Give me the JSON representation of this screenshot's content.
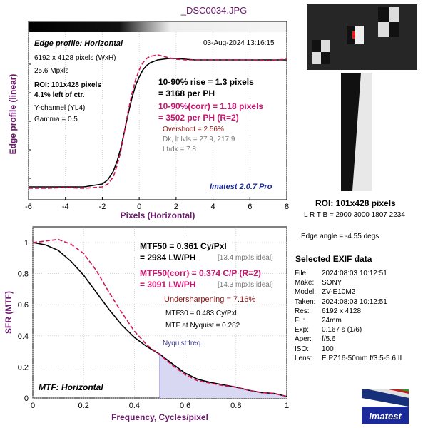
{
  "window_title": "_DSC0034.JPG",
  "colors": {
    "measured": "#000000",
    "corrected": "#d0145a",
    "title": "#6a1a6a",
    "axis_label": "#6a1a6a",
    "nyquist_fill": "#d8d8f2",
    "nyquist_line": "#7070d0",
    "brand_blue": "#1a2a9a"
  },
  "edge_panel": {
    "header": "Edge profile: Horizontal",
    "timestamp": "03-Aug-2024 13:16:15",
    "info_lines": [
      "6192 x 4128 pixels (WxH)",
      "25.6 Mpxls"
    ],
    "roi_lines": [
      "ROI: 101x428 pixels",
      "4.1% left of ctr."
    ],
    "channel": "Y-channel  (YL4)",
    "gamma": "Gamma = 0.5",
    "rise_1": "10-90% rise = 1.3 pixels",
    "rise_2": "= 3168 per PH",
    "corr_1": "10-90%(corr) = 1.18 pixels",
    "corr_2": "= 3502 per PH  (R=2)",
    "overshoot": "Overshoot = 2.56%",
    "levels": "Dk, lt lvls = 27.9, 217.9",
    "ltdk": "Lt/dk = 7.8",
    "version": "Imatest 2.0.7 Pro"
  },
  "mtf_panel": {
    "mtf50_1": "MTF50 = 0.361 Cy/Pxl",
    "mtf50_2": "= 2984 LW/PH",
    "mtf50_ideal": "[13.4 mpxls ideal]",
    "corr_1": "MTF50(corr) = 0.374 C/P  (R=2)",
    "corr_2": "= 3091 LW/PH",
    "corr_ideal": "[14.3 mpxls ideal]",
    "undersharpening": "Undersharpening = 7.16%",
    "mtf30": "MTF30 = 0.483 Cy/Pxl",
    "nyquist_value": "MTF at Nyquist = 0.282",
    "nyquist_label": "Nyquist freq.",
    "footer": "MTF: Horizontal"
  },
  "roi_info": {
    "title": "ROI: 101x428 pixels",
    "coords": "L R  T B = 2900 3000  1807 2234",
    "edge_angle": "Edge angle = -4.55 degs"
  },
  "exif": {
    "title": "Selected EXIF data",
    "rows": [
      {
        "key": "File:",
        "value": "2024:08:03 10:12:51"
      },
      {
        "key": "Make:",
        "value": "SONY"
      },
      {
        "key": "Model:",
        "value": "ZV-E10M2"
      },
      {
        "key": "Taken:",
        "value": "2024:08:03 10:12:51"
      },
      {
        "key": "Res:",
        "value": "6192 x 4128"
      },
      {
        "key": "FL:",
        "value": "24mm"
      },
      {
        "key": "Exp:",
        "value": "0.167 s  (1/6)"
      },
      {
        "key": "Aper:",
        "value": "f/5.6"
      },
      {
        "key": "ISO:",
        "value": "100"
      },
      {
        "key": "Lens:",
        "value": "E PZ16-50mm f/3.5-5.6 II"
      }
    ]
  },
  "logo_text": "Imatest",
  "chart_data": [
    {
      "type": "line",
      "title": "Edge profile: Horizontal",
      "xlabel": "Pixels (Horizontal)",
      "ylabel": "Edge profile (linear)",
      "xlim": [
        -6,
        8
      ],
      "ylim": [
        0,
        1
      ],
      "xticks": [
        "-6",
        "-4",
        "-2",
        "0",
        "2",
        "4",
        "6",
        "8"
      ],
      "grid": true,
      "series": [
        {
          "name": "",
          "x": [
            -6,
            -5,
            -4,
            -3,
            -2.5,
            -2,
            -1.7,
            -1.4,
            -1.2,
            -1.0,
            -0.8,
            -0.6,
            -0.4,
            -0.2,
            0,
            0.2,
            0.4,
            0.6,
            0.8,
            1.0,
            1.3,
            1.6,
            2.0,
            2.5,
            3,
            4,
            5,
            6,
            7,
            8
          ],
          "y": [
            0.04,
            0.04,
            0.04,
            0.04,
            0.05,
            0.06,
            0.09,
            0.15,
            0.22,
            0.31,
            0.43,
            0.55,
            0.66,
            0.75,
            0.81,
            0.86,
            0.89,
            0.91,
            0.92,
            0.93,
            0.935,
            0.94,
            0.94,
            0.935,
            0.93,
            0.93,
            0.93,
            0.93,
            0.93,
            0.93
          ]
        },
        {
          "name": "",
          "x": [
            -6,
            -5,
            -4,
            -3,
            -2.5,
            -2,
            -1.7,
            -1.4,
            -1.2,
            -1.0,
            -0.8,
            -0.6,
            -0.4,
            -0.2,
            0,
            0.2,
            0.4,
            0.6,
            0.8,
            1.0,
            1.3,
            1.6,
            2.0,
            2.5,
            3,
            4,
            5,
            6,
            7,
            8
          ],
          "y": [
            0.03,
            0.03,
            0.035,
            0.03,
            0.035,
            0.04,
            0.06,
            0.11,
            0.19,
            0.29,
            0.43,
            0.57,
            0.69,
            0.79,
            0.86,
            0.91,
            0.94,
            0.955,
            0.96,
            0.965,
            0.955,
            0.945,
            0.935,
            0.93,
            0.93,
            0.93,
            0.93,
            0.93,
            0.925,
            0.935
          ]
        }
      ]
    },
    {
      "type": "line",
      "title": "MTF: Horizontal",
      "xlabel": "Frequency, Cycles/pixel",
      "ylabel": "SFR (MTF)",
      "xlim": [
        0,
        1
      ],
      "ylim": [
        0,
        1
      ],
      "xticks": [
        "0",
        "0.2",
        "0.4",
        "0.6",
        "0.8",
        "1"
      ],
      "yticks": [
        "0",
        "0.2",
        "0.4",
        "0.6",
        "0.8",
        "1"
      ],
      "nyquist_x": 0.5,
      "series": [
        {
          "name": "",
          "x": [
            0,
            0.05,
            0.1,
            0.15,
            0.2,
            0.25,
            0.3,
            0.35,
            0.4,
            0.45,
            0.5,
            0.55,
            0.6,
            0.65,
            0.7,
            0.75,
            0.8,
            0.85,
            0.9,
            0.95,
            1.0
          ],
          "y": [
            1.0,
            0.985,
            0.95,
            0.88,
            0.79,
            0.68,
            0.57,
            0.47,
            0.39,
            0.33,
            0.282,
            0.22,
            0.16,
            0.12,
            0.1,
            0.085,
            0.07,
            0.05,
            0.035,
            0.03,
            0.01
          ]
        },
        {
          "name": "",
          "x": [
            0,
            0.05,
            0.1,
            0.15,
            0.2,
            0.25,
            0.3,
            0.35,
            0.4,
            0.45,
            0.5,
            0.55,
            0.6,
            0.65,
            0.7,
            0.75,
            0.8,
            0.85,
            0.9,
            0.95,
            1.0
          ],
          "y": [
            1.0,
            1.01,
            1.02,
            0.99,
            0.93,
            0.82,
            0.68,
            0.55,
            0.43,
            0.34,
            0.28,
            0.21,
            0.15,
            0.11,
            0.095,
            0.08,
            0.07,
            0.05,
            0.035,
            0.03,
            0.01
          ]
        }
      ]
    }
  ]
}
